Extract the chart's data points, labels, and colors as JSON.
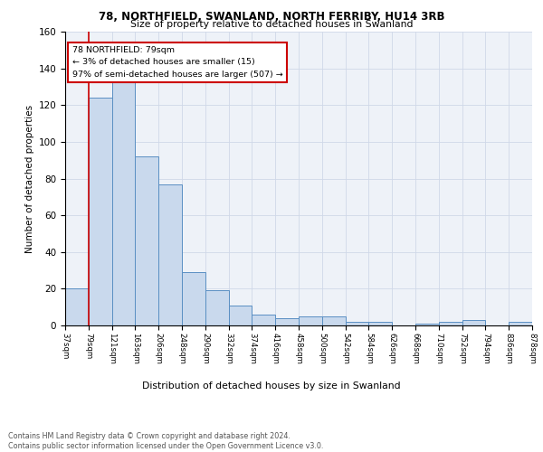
{
  "title1": "78, NORTHFIELD, SWANLAND, NORTH FERRIBY, HU14 3RB",
  "title2": "Size of property relative to detached houses in Swanland",
  "xlabel": "Distribution of detached houses by size in Swanland",
  "ylabel": "Number of detached properties",
  "bin_labels": [
    "37sqm",
    "79sqm",
    "121sqm",
    "163sqm",
    "206sqm",
    "248sqm",
    "290sqm",
    "332sqm",
    "374sqm",
    "416sqm",
    "458sqm",
    "500sqm",
    "542sqm",
    "584sqm",
    "626sqm",
    "668sqm",
    "710sqm",
    "752sqm",
    "794sqm",
    "836sqm",
    "878sqm"
  ],
  "bar_heights": [
    20,
    124,
    133,
    92,
    77,
    29,
    19,
    11,
    6,
    4,
    5,
    5,
    2,
    2,
    0,
    1,
    2,
    3,
    0,
    2
  ],
  "bar_color": "#c9d9ed",
  "bar_edge_color": "#5a8fc3",
  "vline_color": "#cc0000",
  "annotation_text": "78 NORTHFIELD: 79sqm\n← 3% of detached houses are smaller (15)\n97% of semi-detached houses are larger (507) →",
  "annotation_box_color": "#ffffff",
  "annotation_box_edge": "#cc0000",
  "footnote": "Contains HM Land Registry data © Crown copyright and database right 2024.\nContains public sector information licensed under the Open Government Licence v3.0.",
  "ylim": [
    0,
    160
  ],
  "yticks": [
    0,
    20,
    40,
    60,
    80,
    100,
    120,
    140,
    160
  ],
  "grid_color": "#d0d8e8",
  "background_color": "#eef2f8"
}
